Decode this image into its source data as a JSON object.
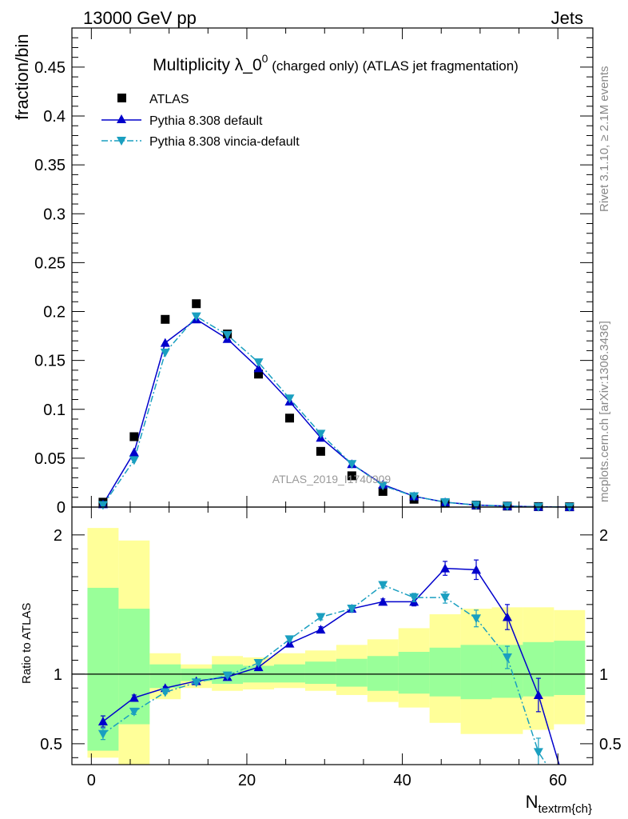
{
  "header": {
    "left": "13000 GeV pp",
    "right": "Jets"
  },
  "side_labels": {
    "rivet": "Rivet 3.1.10, ≥ 2.1M events",
    "mcplots": "mcplots.cern.ch [arXiv:1306.3436]"
  },
  "chart_data": [
    {
      "type": "scatter",
      "panel": "main",
      "title": {
        "main": "Multiplicity λ_0",
        "sup": "0",
        "suffix": " (charged only) (ATLAS jet fragmentation)"
      },
      "ylabel": "fraction/bin",
      "xlim": [
        -2.5,
        64.5
      ],
      "ylim": [
        0,
        0.49
      ],
      "yticks": [
        0,
        0.05,
        0.1,
        0.15,
        0.2,
        0.25,
        0.3,
        0.35,
        0.4,
        0.45
      ],
      "ytick_labels": [
        "0",
        "0.05",
        "0.1",
        "0.15",
        "0.2",
        "0.25",
        "0.3",
        "0.35",
        "0.4",
        "0.45"
      ],
      "legend_position": "top-left",
      "watermark": "ATLAS_2019_I1740909",
      "series": [
        {
          "name": "ATLAS",
          "style": "black-square",
          "color": "#000000",
          "x": [
            1.5,
            5.5,
            9.5,
            13.5,
            17.5,
            21.5,
            25.5,
            29.5,
            33.5,
            37.5,
            41.5,
            45.5,
            49.5,
            53.5,
            57.5,
            61.5
          ],
          "y": [
            0.005,
            0.072,
            0.192,
            0.208,
            0.177,
            0.136,
            0.091,
            0.057,
            0.032,
            0.016,
            0.008,
            0.004,
            0.002,
            0.001,
            0.0005,
            0.0003
          ]
        },
        {
          "name": "Pythia 8.308 default",
          "style": "solid-triangle-up",
          "color": "#0000cc",
          "x": [
            1.5,
            5.5,
            9.5,
            13.5,
            17.5,
            21.5,
            25.5,
            29.5,
            33.5,
            37.5,
            41.5,
            45.5,
            49.5,
            53.5,
            57.5,
            61.5
          ],
          "y": [
            0.003,
            0.056,
            0.168,
            0.192,
            0.172,
            0.142,
            0.108,
            0.071,
            0.044,
            0.023,
            0.011,
            0.005,
            0.002,
            0.001,
            0.0003,
            0.0001
          ]
        },
        {
          "name": "Pythia 8.308 vincia-default",
          "style": "dashdot-triangle-down",
          "color": "#1a9fc0",
          "x": [
            1.5,
            5.5,
            9.5,
            13.5,
            17.5,
            21.5,
            25.5,
            29.5,
            33.5,
            37.5,
            41.5,
            45.5,
            49.5,
            53.5,
            57.5,
            61.5
          ],
          "y": [
            0.002,
            0.048,
            0.158,
            0.195,
            0.176,
            0.148,
            0.111,
            0.075,
            0.044,
            0.022,
            0.011,
            0.005,
            0.002,
            0.001,
            0.0002,
            0.0001
          ]
        }
      ]
    },
    {
      "type": "line",
      "panel": "ratio",
      "ylabel": "Ratio to ATLAS",
      "xlabel_main": "N",
      "xlabel_sub": "textrm{ch}",
      "xlim": [
        -2.5,
        64.5
      ],
      "ylim": [
        0.35,
        2.2
      ],
      "yticks": [
        0.5,
        1,
        2
      ],
      "ytick_labels": [
        "0.5",
        "1",
        "2"
      ],
      "xticks": [
        0,
        20,
        40,
        60
      ],
      "xtick_labels": [
        "0",
        "20",
        "40",
        "60"
      ],
      "reference": 1,
      "bands": {
        "edges": [
          -0.5,
          3.5,
          7.5,
          11.5,
          15.5,
          19.5,
          23.5,
          27.5,
          31.5,
          35.5,
          39.5,
          43.5,
          47.5,
          51.5,
          55.5,
          59.5,
          63.5
        ],
        "yellow": [
          [
            0.4,
            2.05
          ],
          [
            0.1,
            1.96
          ],
          [
            0.82,
            1.15
          ],
          [
            0.9,
            1.07
          ],
          [
            0.88,
            1.13
          ],
          [
            0.89,
            1.12
          ],
          [
            0.9,
            1.15
          ],
          [
            0.88,
            1.17
          ],
          [
            0.85,
            1.21
          ],
          [
            0.8,
            1.25
          ],
          [
            0.76,
            1.33
          ],
          [
            0.65,
            1.43
          ],
          [
            0.57,
            1.47
          ],
          [
            0.57,
            1.48
          ],
          [
            0.6,
            1.48
          ],
          [
            0.64,
            1.46
          ]
        ],
        "green": [
          [
            0.45,
            1.62
          ],
          [
            0.64,
            1.47
          ],
          [
            0.9,
            1.07
          ],
          [
            0.95,
            1.04
          ],
          [
            0.93,
            1.07
          ],
          [
            0.94,
            1.06
          ],
          [
            0.94,
            1.07
          ],
          [
            0.93,
            1.09
          ],
          [
            0.91,
            1.11
          ],
          [
            0.88,
            1.13
          ],
          [
            0.86,
            1.16
          ],
          [
            0.84,
            1.19
          ],
          [
            0.82,
            1.21
          ],
          [
            0.83,
            1.21
          ],
          [
            0.84,
            1.23
          ],
          [
            0.85,
            1.24
          ]
        ]
      },
      "series": [
        {
          "name": "Pythia 8.308 default",
          "color": "#0000cc",
          "x": [
            1.5,
            5.5,
            9.5,
            13.5,
            17.5,
            21.5,
            25.5,
            29.5,
            33.5,
            37.5,
            41.5,
            45.5,
            49.5,
            53.5,
            57.5,
            61.5
          ],
          "y": [
            0.66,
            0.83,
            0.9,
            0.95,
            0.98,
            1.05,
            1.22,
            1.32,
            1.47,
            1.52,
            1.52,
            1.76,
            1.75,
            1.41,
            0.85,
            0.1
          ],
          "err": [
            0.04,
            0.02,
            0.01,
            0.01,
            0.01,
            0.01,
            0.01,
            0.02,
            0.02,
            0.02,
            0.03,
            0.05,
            0.07,
            0.09,
            0.12,
            0.0
          ]
        },
        {
          "name": "Pythia 8.308 vincia-default",
          "color": "#1a9fc0",
          "x": [
            1.5,
            5.5,
            9.5,
            13.5,
            17.5,
            21.5,
            25.5,
            29.5,
            33.5,
            37.5,
            41.5,
            45.5,
            49.5,
            53.5,
            57.5,
            61.5
          ],
          "y": [
            0.57,
            0.73,
            0.87,
            0.94,
            0.99,
            1.08,
            1.25,
            1.41,
            1.47,
            1.64,
            1.55,
            1.55,
            1.4,
            1.12,
            0.44,
            0.1
          ],
          "err": [
            0.04,
            0.02,
            0.01,
            0.01,
            0.01,
            0.01,
            0.01,
            0.02,
            0.02,
            0.02,
            0.03,
            0.04,
            0.06,
            0.08,
            0.1,
            0.0
          ]
        }
      ]
    }
  ]
}
